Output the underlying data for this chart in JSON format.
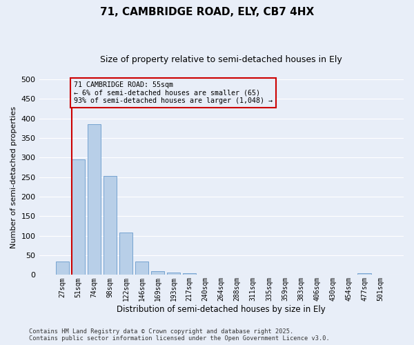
{
  "title": "71, CAMBRIDGE ROAD, ELY, CB7 4HX",
  "subtitle": "Size of property relative to semi-detached houses in Ely",
  "xlabel": "Distribution of semi-detached houses by size in Ely",
  "ylabel": "Number of semi-detached properties",
  "categories": [
    "27sqm",
    "51sqm",
    "74sqm",
    "98sqm",
    "122sqm",
    "146sqm",
    "169sqm",
    "193sqm",
    "217sqm",
    "240sqm",
    "264sqm",
    "288sqm",
    "311sqm",
    "335sqm",
    "359sqm",
    "383sqm",
    "406sqm",
    "430sqm",
    "454sqm",
    "477sqm",
    "501sqm"
  ],
  "values": [
    35,
    295,
    385,
    253,
    108,
    35,
    10,
    6,
    4,
    0,
    0,
    0,
    0,
    0,
    0,
    0,
    0,
    0,
    0,
    5,
    0
  ],
  "bar_color": "#b8cfe8",
  "bar_edge_color": "#6699cc",
  "vline_x_index": 1,
  "vline_color": "#cc0000",
  "annotation_text": "71 CAMBRIDGE ROAD: 55sqm\n← 6% of semi-detached houses are smaller (65)\n93% of semi-detached houses are larger (1,048) →",
  "annotation_box_color": "#cc0000",
  "annotation_bg_color": "#e8eef8",
  "footer_line1": "Contains HM Land Registry data © Crown copyright and database right 2025.",
  "footer_line2": "Contains public sector information licensed under the Open Government Licence v3.0.",
  "ylim": [
    0,
    500
  ],
  "yticks": [
    0,
    50,
    100,
    150,
    200,
    250,
    300,
    350,
    400,
    450,
    500
  ],
  "background_color": "#e8eef8",
  "grid_color": "#ffffff",
  "figsize": [
    6.0,
    5.0
  ],
  "dpi": 100,
  "title_fontsize": 11,
  "subtitle_fontsize": 9
}
